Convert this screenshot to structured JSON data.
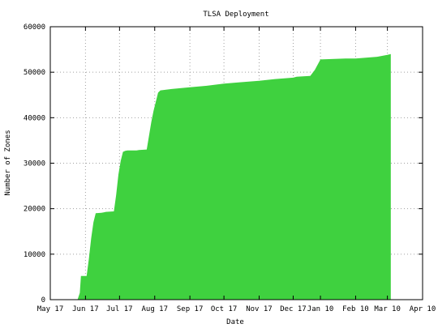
{
  "chart_data": {
    "type": "area",
    "title": "TLSA Deployment",
    "xlabel": "Date",
    "ylabel": "Number of Zones",
    "ylim": [
      0,
      60000
    ],
    "yticks": [
      0,
      10000,
      20000,
      30000,
      40000,
      50000,
      60000
    ],
    "xticks": [
      "May 17",
      "Jun 17",
      "Jul 17",
      "Aug 17",
      "Sep 17",
      "Oct 17",
      "Nov 17",
      "Dec 17",
      "Jan 10",
      "Feb 10",
      "Mar 10",
      "Apr 10"
    ],
    "grid": true,
    "fill_color": "#3fd13f",
    "series": [
      {
        "x": [
          "Jun 10",
          "Jun 12",
          "Jun 13",
          "Jun 18",
          "Jun 20",
          "Jun 22",
          "Jun 24",
          "Jun 26",
          "Jul 1",
          "Jul 3",
          "Jul 5",
          "Jul 12",
          "Jul 14",
          "Jul 16",
          "Jul 18",
          "Jul 20",
          "Jul 22",
          "Jul 24",
          "Aug 1",
          "Aug 3",
          "Aug 10",
          "Aug 12",
          "Aug 14",
          "Aug 16",
          "Aug 18",
          "Aug 20",
          "Aug 22",
          "Sep 1",
          "Sep 17",
          "Oct 1",
          "Oct 17",
          "Nov 1",
          "Nov 17",
          "Dec 1",
          "Dec 17",
          "Dec 20",
          "Jan 1",
          "Jan 5",
          "Jan 10",
          "Feb 1",
          "Feb 10",
          "Mar 1",
          "Mar 10",
          "Mar 13"
        ],
        "values": [
          0,
          1500,
          5200,
          5200,
          9000,
          13500,
          17000,
          19000,
          19100,
          19200,
          19300,
          19400,
          23000,
          27500,
          30500,
          32500,
          32700,
          32800,
          32800,
          32900,
          33000,
          36000,
          39000,
          41500,
          43500,
          45500,
          46000,
          46300,
          46700,
          47000,
          47500,
          47800,
          48100,
          48500,
          48800,
          49000,
          49200,
          50500,
          52800,
          53000,
          53000,
          53400,
          53800,
          54000
        ]
      }
    ]
  }
}
